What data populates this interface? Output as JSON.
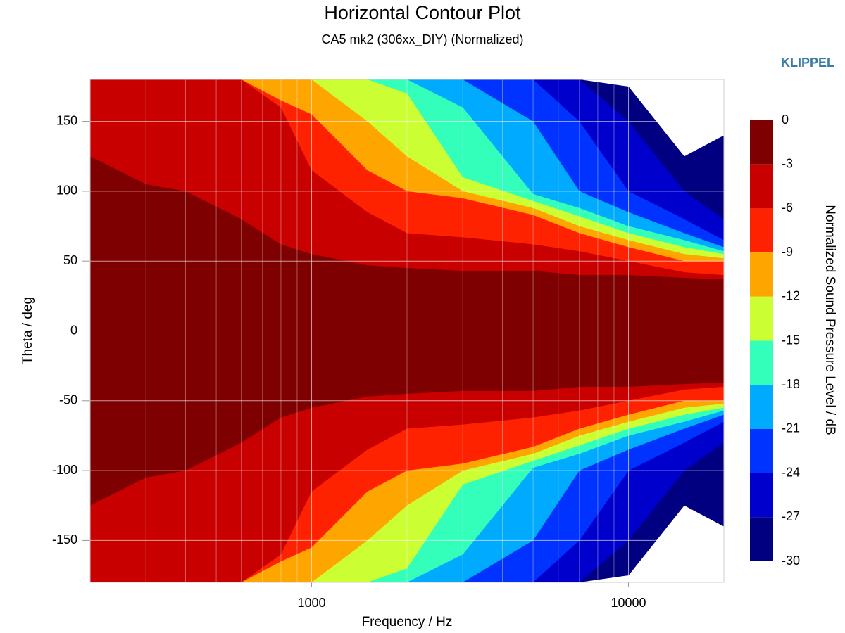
{
  "chart_data": {
    "type": "contour",
    "title": "Horizontal Contour Plot",
    "subtitle": "CA5 mk2 (306xx_DIY) (Normalized)",
    "brand": "KLIPPEL",
    "xlabel": "Frequency / Hz",
    "ylabel": "Theta / deg",
    "colorbar_label": "Normalized Sound Pressure Level / dB",
    "xscale": "log",
    "xlim": [
      200,
      20000
    ],
    "xticks": [
      1000,
      10000
    ],
    "ylim": [
      -180,
      180
    ],
    "yticks": [
      -150,
      -100,
      -50,
      0,
      50,
      100,
      150
    ],
    "grid": true,
    "levels": [
      0,
      -3,
      -6,
      -9,
      -12,
      -15,
      -18,
      -21,
      -24,
      -27,
      -30
    ],
    "colors": [
      "#7f0000",
      "#c80000",
      "#ff2200",
      "#ffa500",
      "#ccff33",
      "#33ffbb",
      "#00aaff",
      "#0033ff",
      "#0000cc",
      "#000080"
    ],
    "below_color": "#ffffff",
    "x": [
      200,
      300,
      400,
      600,
      800,
      1000,
      1500,
      2000,
      3000,
      5000,
      7000,
      10000,
      15000,
      20000
    ],
    "contours": [
      [
        125,
        105,
        100,
        80,
        62,
        55,
        47,
        45,
        43,
        43,
        40,
        40,
        38,
        37
      ],
      [
        180,
        180,
        180,
        180,
        160,
        115,
        85,
        70,
        67,
        62,
        57,
        50,
        42,
        40
      ],
      [
        180,
        180,
        180,
        180,
        165,
        155,
        115,
        100,
        95,
        83,
        70,
        60,
        50,
        50
      ],
      [
        180,
        180,
        180,
        180,
        180,
        180,
        150,
        125,
        100,
        88,
        75,
        65,
        55,
        52
      ],
      [
        180,
        180,
        180,
        180,
        180,
        180,
        180,
        170,
        110,
        93,
        82,
        70,
        60,
        55
      ],
      [
        180,
        180,
        180,
        180,
        180,
        180,
        180,
        180,
        160,
        98,
        88,
        75,
        65,
        57
      ],
      [
        180,
        180,
        180,
        180,
        180,
        180,
        180,
        180,
        180,
        150,
        100,
        85,
        70,
        60
      ],
      [
        180,
        180,
        180,
        180,
        180,
        180,
        180,
        180,
        180,
        180,
        150,
        100,
        80,
        65
      ],
      [
        180,
        180,
        180,
        180,
        180,
        180,
        180,
        180,
        180,
        180,
        180,
        150,
        100,
        80
      ],
      [
        180,
        180,
        180,
        180,
        180,
        180,
        180,
        180,
        180,
        180,
        180,
        175,
        125,
        140
      ]
    ]
  }
}
